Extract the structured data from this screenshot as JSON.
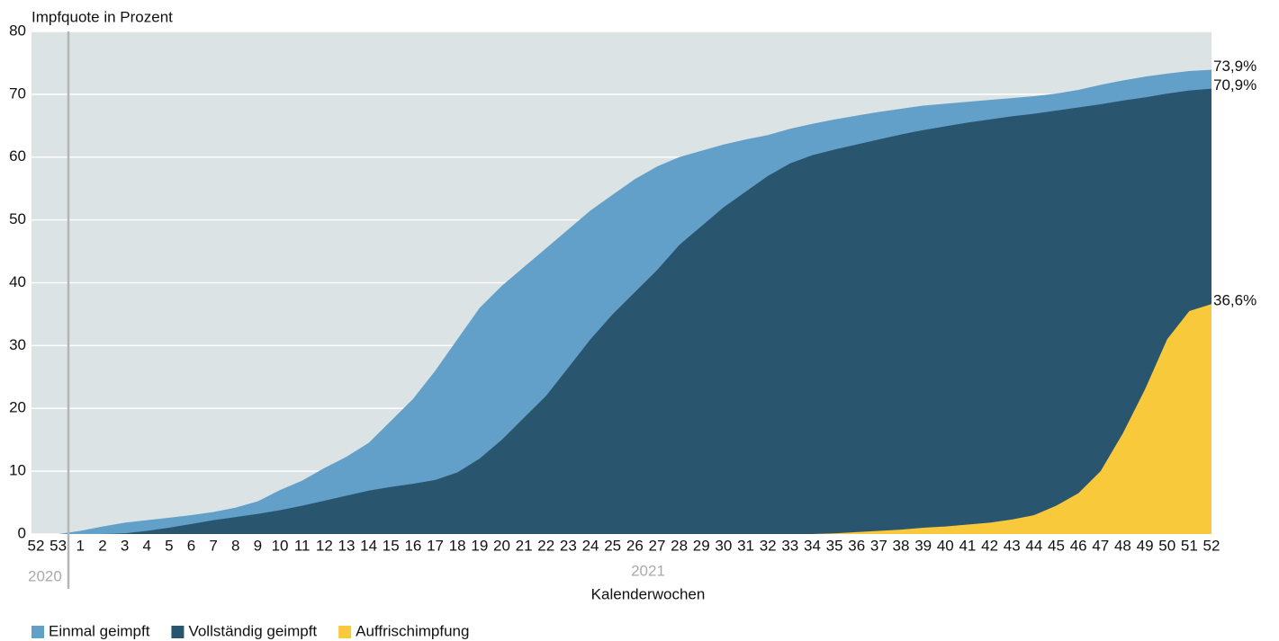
{
  "chart_data": {
    "type": "area",
    "y_axis_label": "Impfquote in Prozent",
    "x_axis_label": "Kalenderwochen",
    "year_labels": [
      "2020",
      "2021"
    ],
    "categories": [
      "52",
      "53",
      "1",
      "2",
      "3",
      "4",
      "5",
      "6",
      "7",
      "8",
      "9",
      "10",
      "11",
      "12",
      "13",
      "14",
      "15",
      "16",
      "17",
      "18",
      "19",
      "20",
      "21",
      "22",
      "23",
      "24",
      "25",
      "26",
      "27",
      "28",
      "29",
      "30",
      "31",
      "32",
      "33",
      "34",
      "35",
      "36",
      "37",
      "38",
      "39",
      "40",
      "41",
      "42",
      "43",
      "44",
      "45",
      "46",
      "47",
      "48",
      "49",
      "50",
      "51",
      "52"
    ],
    "series": [
      {
        "name": "Einmal geimpft",
        "color": "#62a0c9",
        "values": [
          0,
          0,
          0.5,
          1.2,
          1.8,
          2.2,
          2.6,
          3.0,
          3.5,
          4.2,
          5.2,
          7,
          8.5,
          10.5,
          12.3,
          14.5,
          18,
          21.5,
          26,
          31,
          36,
          39.5,
          42.5,
          45.5,
          48.5,
          51.5,
          54,
          56.5,
          58.5,
          60,
          61,
          62,
          62.8,
          63.5,
          64.5,
          65.3,
          66,
          66.6,
          67.2,
          67.7,
          68.2,
          68.5,
          68.8,
          69.1,
          69.4,
          69.7,
          70.1,
          70.7,
          71.5,
          72.2,
          72.8,
          73.3,
          73.7,
          73.9
        ],
        "value_labels": [
          null,
          null,
          null,
          null,
          null,
          null,
          null,
          null,
          null,
          null,
          null,
          null,
          null,
          null,
          null,
          null,
          null,
          null,
          null,
          null,
          null,
          null,
          null,
          null,
          null,
          null,
          null,
          null,
          null,
          null,
          null,
          null,
          null,
          null,
          null,
          null,
          null,
          null,
          null,
          null,
          null,
          null,
          null,
          null,
          null,
          null,
          null,
          null,
          null,
          null,
          null,
          null,
          null,
          "73,9%"
        ]
      },
      {
        "name": "Vollständig geimpft",
        "color": "#29566e",
        "values": [
          0,
          0,
          0,
          0,
          0.1,
          0.5,
          1.0,
          1.6,
          2.2,
          2.7,
          3.2,
          3.8,
          4.5,
          5.3,
          6.1,
          6.9,
          7.5,
          8.0,
          8.6,
          9.8,
          12,
          15,
          18.5,
          22,
          26.5,
          31,
          35,
          38.5,
          42,
          46,
          49,
          52,
          54.5,
          57,
          59,
          60.3,
          61.2,
          62,
          62.8,
          63.6,
          64.3,
          64.9,
          65.5,
          66,
          66.5,
          66.9,
          67.4,
          67.9,
          68.4,
          69,
          69.5,
          70.1,
          70.6,
          70.9
        ],
        "value_labels": [
          null,
          null,
          null,
          null,
          null,
          null,
          null,
          null,
          null,
          null,
          null,
          null,
          null,
          null,
          null,
          null,
          null,
          null,
          null,
          null,
          null,
          null,
          null,
          null,
          null,
          null,
          null,
          null,
          null,
          null,
          null,
          null,
          null,
          null,
          null,
          null,
          null,
          null,
          null,
          null,
          null,
          null,
          null,
          null,
          null,
          null,
          null,
          null,
          null,
          null,
          null,
          null,
          null,
          "70,9%"
        ]
      },
      {
        "name": "Auffrischimpfung",
        "color": "#f9c93c",
        "values": [
          0,
          0,
          0,
          0,
          0,
          0,
          0,
          0,
          0,
          0,
          0,
          0,
          0,
          0,
          0,
          0,
          0,
          0,
          0,
          0,
          0,
          0,
          0,
          0,
          0,
          0,
          0,
          0,
          0,
          0,
          0,
          0,
          0,
          0,
          0,
          0,
          0.1,
          0.3,
          0.5,
          0.7,
          1.0,
          1.2,
          1.5,
          1.8,
          2.3,
          3.0,
          4.5,
          6.5,
          10,
          16,
          23,
          31,
          35.5,
          36.6
        ],
        "value_labels": [
          null,
          null,
          null,
          null,
          null,
          null,
          null,
          null,
          null,
          null,
          null,
          null,
          null,
          null,
          null,
          null,
          null,
          null,
          null,
          null,
          null,
          null,
          null,
          null,
          null,
          null,
          null,
          null,
          null,
          null,
          null,
          null,
          null,
          null,
          null,
          null,
          null,
          null,
          null,
          null,
          null,
          null,
          null,
          null,
          null,
          null,
          null,
          null,
          null,
          null,
          null,
          null,
          null,
          "36,6%"
        ]
      }
    ],
    "ylim": [
      0,
      80
    ],
    "yticks": [
      0,
      10,
      20,
      30,
      40,
      50,
      60,
      70,
      80
    ],
    "grid": true,
    "legend": "bottom-left"
  }
}
